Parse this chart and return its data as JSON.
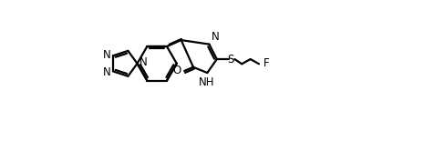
{
  "bg_color": "#ffffff",
  "line_color": "#000000",
  "line_width": 1.6,
  "font_size": 8.5,
  "figsize": [
    4.77,
    1.55
  ],
  "dpi": 100,
  "xlim": [
    -3.8,
    6.2
  ],
  "ylim": [
    -2.2,
    2.2
  ]
}
